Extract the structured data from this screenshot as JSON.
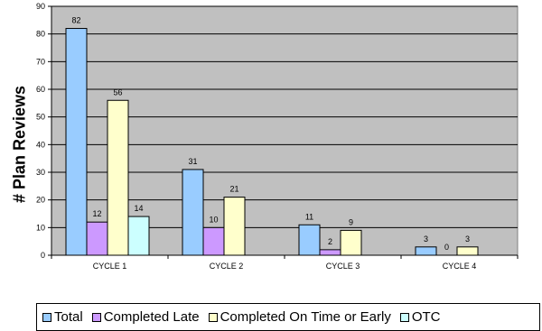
{
  "chart_data": {
    "type": "bar",
    "categories": [
      "CYCLE 1",
      "CYCLE 2",
      "CYCLE 3",
      "CYCLE 4"
    ],
    "series": [
      {
        "name": "Total",
        "values": [
          82,
          31,
          11,
          3
        ],
        "color": "#99CCFF"
      },
      {
        "name": "Completed Late",
        "values": [
          12,
          10,
          2,
          0
        ],
        "color": "#CC99FF"
      },
      {
        "name": "Completed On Time or Early",
        "values": [
          56,
          21,
          9,
          3
        ],
        "color": "#FFFFCC"
      },
      {
        "name": "OTC",
        "values": [
          14,
          null,
          null,
          null
        ],
        "color": "#CCFFFF"
      }
    ],
    "data_labels": [
      [
        "82",
        "12",
        "56",
        "14"
      ],
      [
        "31",
        "10",
        "21",
        ""
      ],
      [
        "11",
        "2",
        "9",
        ""
      ],
      [
        "3",
        "0",
        "3",
        ""
      ]
    ],
    "title": "",
    "xlabel": "",
    "ylabel": "# Plan Reviews",
    "ylim": [
      0,
      90
    ],
    "yticks": [
      0,
      10,
      20,
      30,
      40,
      50,
      60,
      70,
      80,
      90
    ],
    "grid": true,
    "plot_background": "#C0C0C0",
    "legend_position": "bottom"
  }
}
